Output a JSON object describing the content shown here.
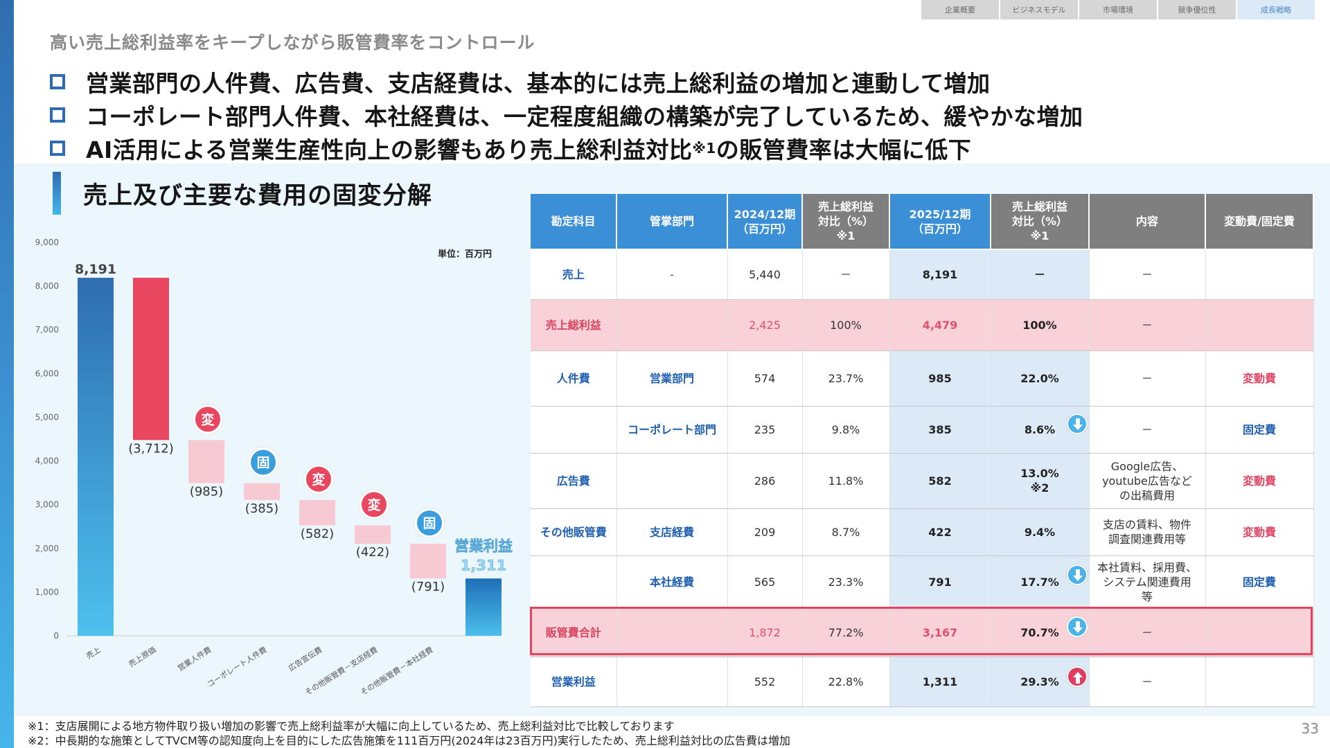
{
  "nav": [
    "企業概要",
    "ビジネスモデル",
    "市場環境",
    "競争優位性",
    "成長戦略"
  ],
  "subtitle": "高い売上総利益率をキープしながら販管費率をコントロール",
  "bullets": [
    {
      "text": "営業部門の人件費、広告費、支店経費は、基本的には売上総利益の増加と連動して増加",
      "sup": ""
    },
    {
      "text": "コーポレート部門人件費、本社経費は、一定程度組織の構築が完了しているため、緩やかな増加",
      "sup": ""
    },
    {
      "text": "AI活用による営業生産性向上の影響もあり売上総利益対比",
      "sup": "※1",
      "tail": "の販管費率は大幅に低下"
    }
  ],
  "section_title": "売上及び主要な費用の固変分解",
  "unit_label": "単位：百万円",
  "chart_data": {
    "type": "bar",
    "categories": [
      "売上",
      "売上原価",
      "営業人件費",
      "コーポレート人件費",
      "広告宣伝費",
      "その他販管費－支店経費",
      "その他販管費－本社経費",
      ""
    ],
    "values": [
      8191,
      -3712,
      -985,
      -385,
      -582,
      -422,
      -791,
      1311
    ],
    "value_labels": [
      "8,191",
      "(3,712)",
      "(985)",
      "(385)",
      "(582)",
      "(422)",
      "(791)",
      "1,311"
    ],
    "badges": [
      "",
      "",
      "変",
      "固",
      "変",
      "変",
      "固",
      ""
    ],
    "final_label": "営業利益",
    "yticks": [
      "0",
      "1,000",
      "2,000",
      "3,000",
      "4,000",
      "5,000",
      "6,000",
      "7,000",
      "8,000",
      "9,000"
    ],
    "ylim": [
      0,
      9000
    ],
    "colors": {
      "revenue": "#3b86c8",
      "cost": "#e8475f",
      "expense": "#f7c9d2",
      "profit": "#2a8ed0",
      "var_badge": "#e8475f",
      "fix_badge": "#3a9ede"
    }
  },
  "table": {
    "headers": [
      "勘定科目",
      "管掌部門",
      "2024/12期\n（百万円）",
      "売上総利益\n対比（%）\n※1",
      "2025/12期\n（百万円）",
      "売上総利益\n対比（%）\n※1",
      "内容",
      "変動費/固定費"
    ],
    "rows": [
      [
        "売上",
        "-",
        "5,440",
        "－",
        "8,191",
        "－",
        "－",
        ""
      ],
      [
        "売上総利益",
        "",
        "2,425",
        "100%",
        "4,479",
        "100%",
        "－",
        ""
      ],
      [
        "人件費",
        "営業部門",
        "574",
        "23.7%",
        "985",
        "22.0%",
        "－",
        "変動費"
      ],
      [
        "",
        "コーポレート部門",
        "235",
        "9.8%",
        "385",
        "8.6%",
        "－",
        "固定費"
      ],
      [
        "広告費",
        "",
        "286",
        "11.8%",
        "582",
        "13.0%\n※2",
        "Google広告、\nyoutube広告など\nの出稿費用",
        "変動費"
      ],
      [
        "その他販管費",
        "支店経費",
        "209",
        "8.7%",
        "422",
        "9.4%",
        "支店の賃料、物件\n調査関連費用等",
        "変動費"
      ],
      [
        "",
        "本社経費",
        "565",
        "23.3%",
        "791",
        "17.7%",
        "本社賃料、採用費、\nシステム関連費用\n等",
        "固定費"
      ],
      [
        "販管費合計",
        "",
        "1,872",
        "77.2%",
        "3,167",
        "70.7%",
        "－",
        ""
      ],
      [
        "営業利益",
        "",
        "552",
        "22.8%",
        "1,311",
        "29.3%",
        "－",
        ""
      ]
    ],
    "colors": {
      "header_blue": "#3a8fd6",
      "header_gray": "#7f7f7f",
      "pink_row": "#f9d2d9",
      "highlight_col": "#dbeaf6",
      "variable": "#e04764",
      "fixed": "#2060b0"
    }
  },
  "footnotes": [
    "※1：支店展開による地方物件取り扱い増加の影響で売上総利益率が大幅に向上しているため、売上総利益対比で比較しております",
    "※2：中長期的な施策としてTVCM等の認知度向上を目的にした広告施策を111百万円(2024年は23百万円)実行したため、売上総利益対比の広告費は増加"
  ],
  "page_number": "33"
}
